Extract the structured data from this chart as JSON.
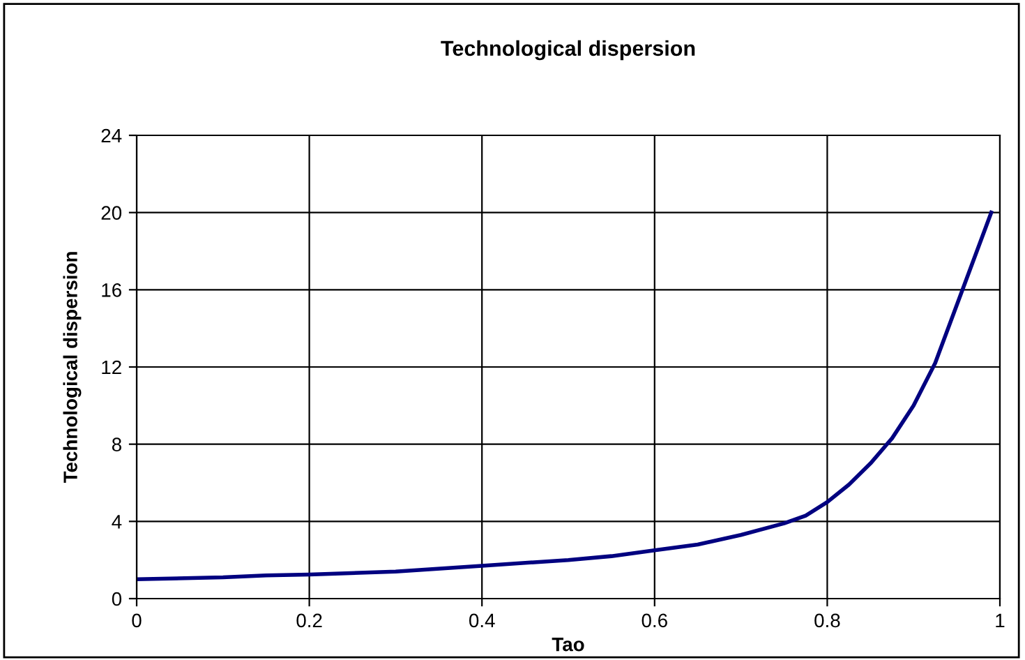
{
  "chart_data": {
    "type": "line",
    "title": "Technological dispersion",
    "xlabel": "Tao",
    "ylabel": "Technological dispersion",
    "x": [
      0,
      0.1,
      0.15,
      0.2,
      0.3,
      0.4,
      0.5,
      0.55,
      0.6,
      0.65,
      0.7,
      0.75,
      0.775,
      0.8,
      0.825,
      0.85,
      0.875,
      0.9,
      0.925,
      0.99
    ],
    "series": [
      {
        "color": "#000080",
        "values": [
          1.0,
          1.1,
          1.2,
          1.25,
          1.4,
          1.7,
          2.0,
          2.2,
          2.5,
          2.8,
          3.3,
          3.9,
          4.3,
          5.0,
          5.9,
          7.0,
          8.3,
          10.0,
          12.2,
          20.0
        ]
      }
    ],
    "xlim": [
      0,
      1
    ],
    "ylim": [
      0,
      24
    ],
    "xticks": [
      0,
      0.2,
      0.4,
      0.6,
      0.8,
      1
    ],
    "yticks": [
      0,
      4,
      8,
      12,
      16,
      20,
      24
    ],
    "grid": true,
    "marker": "none",
    "line_style": "solid",
    "legend": false
  }
}
